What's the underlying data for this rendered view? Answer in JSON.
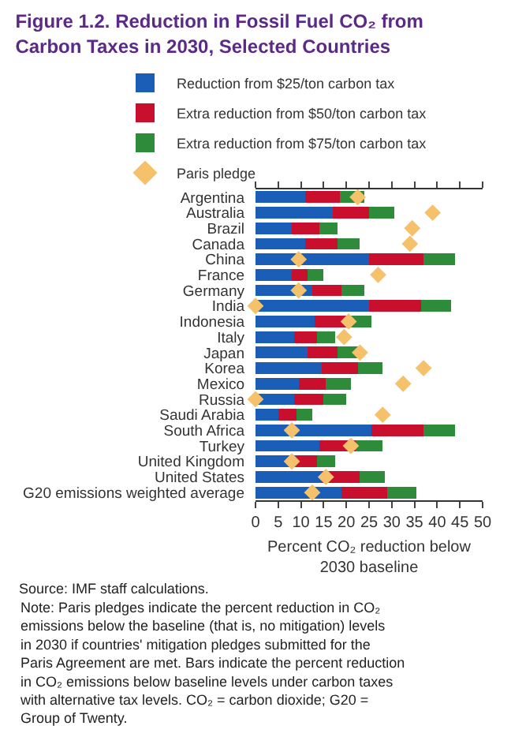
{
  "chart_data": {
    "type": "bar",
    "stacked": true,
    "orientation": "horizontal",
    "title": "Figure 1.2. Reduction in Fossil Fuel CO₂ from Carbon Taxes in 2030, Selected Countries",
    "xlabel": "Percent CO₂ reduction below 2030 baseline",
    "categories": [
      "Argentina",
      "Australia",
      "Brazil",
      "Canada",
      "China",
      "France",
      "Germany",
      "India",
      "Indonesia",
      "Italy",
      "Japan",
      "Korea",
      "Mexico",
      "Russia",
      "Saudi Arabia",
      "South Africa",
      "Turkey",
      "United Kingdom",
      "United States",
      "G20 emissions weighted average"
    ],
    "series": [
      {
        "name": "Reduction from $25/ton carbon tax",
        "color": "#1a5eb8",
        "values": [
          11,
          17,
          8,
          11,
          25,
          8,
          12.5,
          25,
          13,
          8.5,
          11.5,
          14.5,
          9.5,
          8.5,
          5,
          25.5,
          14,
          9,
          14.5,
          19
        ]
      },
      {
        "name": "Extra reduction from $50/ton carbon tax",
        "color": "#c8102e",
        "values": [
          7.5,
          8,
          6,
          7,
          12,
          3.5,
          6.5,
          11.5,
          7,
          5,
          6.5,
          8,
          6,
          6.5,
          4,
          11.5,
          8,
          4.5,
          8.5,
          10
        ]
      },
      {
        "name": "Extra reduction from $75/ton carbon tax",
        "color": "#2e8b3a",
        "values": [
          5.5,
          5.5,
          4,
          5,
          7,
          3.5,
          5,
          6.5,
          5.5,
          4,
          4.5,
          5.5,
          5.5,
          5,
          3.5,
          7,
          6,
          4,
          5.5,
          6.5
        ]
      },
      {
        "name": "Paris pledge",
        "type": "scatter",
        "color": "#f5c26b",
        "values": [
          22.5,
          39,
          34.5,
          34,
          9.5,
          27,
          9.5,
          0,
          20.5,
          19.5,
          23,
          37,
          32.5,
          0,
          28,
          8,
          21,
          8,
          15.5,
          12.5
        ]
      }
    ],
    "xlim": [
      0,
      50
    ],
    "xticks": [
      0,
      5,
      10,
      15,
      20,
      25,
      30,
      35,
      40,
      45,
      50
    ],
    "marker": "diamond",
    "legend": "top",
    "grid": false,
    "annotations": [
      "Source: IMF staff calculations.",
      "Note: Paris pledges indicate the percent reduction in CO₂ emissions below the baseline (that is, no mitigation) levels in 2030 if countries' mitigation pledges submitted for the Paris Agreement are met. Bars indicate the percent reduction in CO₂ emissions below baseline levels under carbon taxes with alternative tax levels. CO₂ = carbon dioxide; G20 = Group of Twenty."
    ]
  }
}
